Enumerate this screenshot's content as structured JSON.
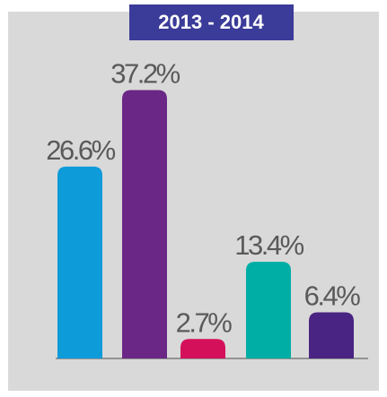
{
  "chart_data": {
    "type": "bar",
    "title": "2013 - 2014",
    "values": [
      26.6,
      37.2,
      2.7,
      13.4,
      6.4
    ],
    "value_labels": [
      "26.6%",
      "37.2%",
      "2.7%",
      "13.4%",
      "6.4%"
    ],
    "colors": [
      "#0e9bd9",
      "#6b2785",
      "#d5105b",
      "#00aea6",
      "#4a2482"
    ],
    "ylim": [
      0,
      40
    ]
  }
}
